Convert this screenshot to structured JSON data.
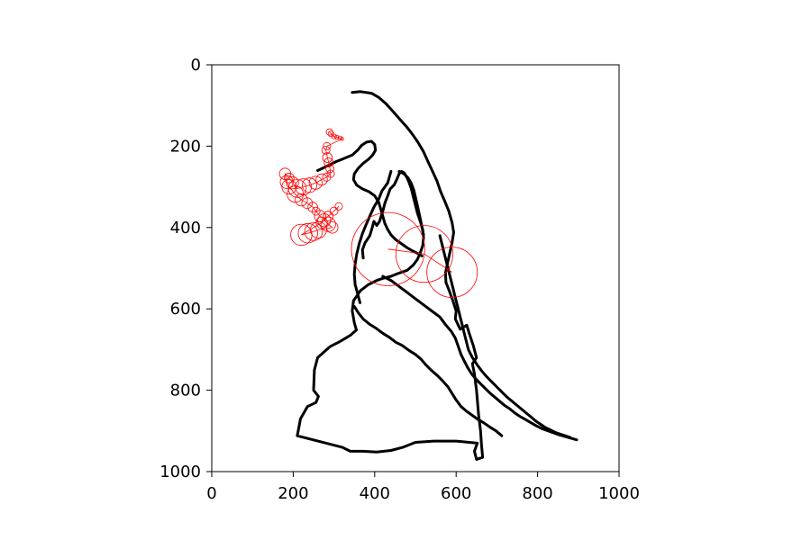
{
  "chart_data": {
    "type": "scatter",
    "title": "",
    "xlabel": "",
    "ylabel": "",
    "xlim": [
      0,
      1000
    ],
    "ylim": [
      1000,
      0
    ],
    "y_inverted": true,
    "aspect": "equal",
    "grid": false,
    "legend": "none",
    "x_ticks": [
      "0",
      "200",
      "400",
      "600",
      "800",
      "1000"
    ],
    "y_ticks": [
      "0",
      "200",
      "400",
      "600",
      "800",
      "1000"
    ],
    "series": [
      {
        "kind": "line",
        "color": "#000000",
        "points": [
          [
            345,
            68
          ],
          [
            365,
            66
          ],
          [
            392,
            70
          ],
          [
            410,
            80
          ],
          [
            428,
            96
          ],
          [
            446,
            116
          ],
          [
            462,
            134
          ],
          [
            478,
            152
          ],
          [
            492,
            170
          ],
          [
            506,
            190
          ],
          [
            519,
            212
          ],
          [
            531,
            238
          ],
          [
            542,
            262
          ],
          [
            553,
            286
          ],
          [
            562,
            312
          ],
          [
            572,
            335
          ],
          [
            582,
            360
          ],
          [
            590,
            388
          ],
          [
            594,
            412
          ],
          [
            590,
            437
          ],
          [
            584,
            464
          ],
          [
            579,
            487
          ],
          [
            574,
            512
          ],
          [
            575,
            535
          ],
          [
            584,
            558
          ],
          [
            592,
            580
          ],
          [
            600,
            605
          ],
          [
            598,
            625
          ],
          [
            610,
            650
          ],
          [
            626,
            640
          ],
          [
            632,
            660
          ],
          [
            642,
            690
          ],
          [
            650,
            720
          ],
          [
            640,
            735
          ],
          [
            645,
            760
          ],
          [
            650,
            800
          ],
          [
            655,
            860
          ],
          [
            660,
            900
          ],
          [
            662,
            930
          ],
          [
            665,
            965
          ],
          [
            650,
            970
          ],
          [
            645,
            950
          ],
          [
            652,
            930
          ],
          [
            600,
            925
          ],
          [
            545,
            925
          ],
          [
            500,
            928
          ],
          [
            470,
            940
          ],
          [
            440,
            948
          ],
          [
            405,
            952
          ],
          [
            370,
            950
          ],
          [
            340,
            950
          ],
          [
            320,
            940
          ],
          [
            210,
            912
          ],
          [
            218,
            870
          ],
          [
            235,
            840
          ],
          [
            256,
            830
          ],
          [
            262,
            815
          ],
          [
            250,
            800
          ],
          [
            252,
            750
          ],
          [
            260,
            720
          ],
          [
            290,
            693
          ],
          [
            315,
            680
          ],
          [
            340,
            665
          ],
          [
            355,
            652
          ],
          [
            350,
            634
          ],
          [
            345,
            605
          ],
          [
            348,
            580
          ],
          [
            365,
            555
          ],
          [
            385,
            540
          ],
          [
            405,
            530
          ],
          [
            420,
            525
          ],
          [
            440,
            520
          ],
          [
            460,
            512
          ],
          [
            480,
            505
          ],
          [
            495,
            492
          ],
          [
            505,
            478
          ],
          [
            512,
            462
          ],
          [
            518,
            445
          ],
          [
            520,
            425
          ],
          [
            518,
            405
          ],
          [
            512,
            385
          ],
          [
            505,
            365
          ],
          [
            500,
            345
          ],
          [
            495,
            325
          ],
          [
            490,
            305
          ],
          [
            484,
            288
          ],
          [
            478,
            275
          ],
          [
            472,
            265
          ],
          [
            466,
            262
          ],
          [
            460,
            268
          ],
          [
            455,
            280
          ],
          [
            448,
            295
          ],
          [
            438,
            305
          ],
          [
            432,
            322
          ],
          [
            425,
            340
          ],
          [
            420,
            360
          ],
          [
            412,
            385
          ],
          [
            405,
            395
          ],
          [
            398,
            385
          ],
          [
            394,
            400
          ],
          [
            388,
            420
          ],
          [
            376,
            438
          ],
          [
            370,
            455
          ],
          [
            372,
            475
          ]
        ]
      },
      {
        "kind": "line",
        "color": "#000000",
        "points": [
          [
            350,
            594
          ],
          [
            360,
            610
          ],
          [
            372,
            625
          ],
          [
            388,
            638
          ],
          [
            404,
            648
          ],
          [
            420,
            660
          ],
          [
            436,
            670
          ],
          [
            452,
            682
          ],
          [
            468,
            690
          ],
          [
            484,
            702
          ],
          [
            500,
            712
          ],
          [
            514,
            724
          ],
          [
            526,
            738
          ],
          [
            540,
            752
          ],
          [
            554,
            764
          ],
          [
            568,
            778
          ],
          [
            580,
            792
          ],
          [
            590,
            808
          ],
          [
            600,
            824
          ],
          [
            612,
            840
          ],
          [
            626,
            852
          ],
          [
            640,
            862
          ],
          [
            654,
            872
          ],
          [
            668,
            880
          ],
          [
            682,
            890
          ],
          [
            698,
            900
          ],
          [
            712,
            912
          ]
        ]
      },
      {
        "kind": "line",
        "color": "#000000",
        "points": [
          [
            420,
            520
          ],
          [
            440,
            530
          ],
          [
            460,
            545
          ],
          [
            480,
            560
          ],
          [
            500,
            575
          ],
          [
            520,
            590
          ],
          [
            540,
            605
          ],
          [
            560,
            620
          ],
          [
            575,
            640
          ],
          [
            588,
            655
          ],
          [
            598,
            672
          ],
          [
            605,
            692
          ],
          [
            612,
            712
          ],
          [
            620,
            728
          ],
          [
            628,
            744
          ],
          [
            638,
            760
          ],
          [
            648,
            772
          ],
          [
            660,
            784
          ],
          [
            672,
            796
          ],
          [
            684,
            808
          ],
          [
            696,
            818
          ],
          [
            708,
            828
          ],
          [
            720,
            838
          ],
          [
            732,
            846
          ],
          [
            744,
            856
          ],
          [
            756,
            864
          ],
          [
            770,
            872
          ],
          [
            784,
            880
          ],
          [
            798,
            888
          ],
          [
            812,
            895
          ],
          [
            826,
            900
          ],
          [
            840,
            905
          ],
          [
            854,
            910
          ],
          [
            868,
            914
          ],
          [
            882,
            918
          ],
          [
            896,
            922
          ]
        ]
      },
      {
        "kind": "line",
        "color": "#000000",
        "points": [
          [
            440,
            262
          ],
          [
            432,
            290
          ],
          [
            418,
            310
          ],
          [
            410,
            330
          ],
          [
            398,
            350
          ],
          [
            388,
            372
          ],
          [
            378,
            395
          ],
          [
            370,
            415
          ],
          [
            362,
            440
          ],
          [
            356,
            465
          ],
          [
            352,
            490
          ],
          [
            350,
            515
          ],
          [
            352,
            540
          ],
          [
            358,
            562
          ],
          [
            364,
            585
          ]
        ]
      },
      {
        "kind": "line",
        "color": "#000000",
        "points": [
          [
            260,
            260
          ],
          [
            285,
            248
          ],
          [
            305,
            238
          ],
          [
            325,
            230
          ],
          [
            345,
            222
          ],
          [
            358,
            210
          ],
          [
            368,
            198
          ],
          [
            380,
            190
          ],
          [
            392,
            188
          ],
          [
            400,
            196
          ],
          [
            402,
            210
          ],
          [
            395,
            222
          ],
          [
            385,
            232
          ],
          [
            372,
            242
          ],
          [
            360,
            254
          ],
          [
            350,
            268
          ],
          [
            348,
            282
          ],
          [
            356,
            296
          ],
          [
            370,
            305
          ],
          [
            386,
            312
          ],
          [
            400,
            322
          ],
          [
            410,
            338
          ],
          [
            415,
            355
          ],
          [
            420,
            372
          ],
          [
            425,
            390
          ],
          [
            432,
            405
          ],
          [
            440,
            418
          ],
          [
            452,
            430
          ],
          [
            466,
            440
          ],
          [
            480,
            450
          ],
          [
            494,
            458
          ],
          [
            506,
            464
          ],
          [
            516,
            470
          ]
        ]
      },
      {
        "kind": "line",
        "color": "#000000",
        "points": [
          [
            460,
            262
          ],
          [
            472,
            268
          ],
          [
            482,
            278
          ],
          [
            490,
            292
          ],
          [
            496,
            308
          ],
          [
            500,
            325
          ],
          [
            504,
            342
          ],
          [
            508,
            360
          ],
          [
            512,
            378
          ],
          [
            516,
            398
          ],
          [
            520,
            418
          ]
        ]
      },
      {
        "kind": "line",
        "color": "#000000",
        "points": [
          [
            560,
            420
          ],
          [
            565,
            440
          ],
          [
            570,
            460
          ],
          [
            575,
            480
          ],
          [
            580,
            500
          ],
          [
            585,
            520
          ],
          [
            590,
            540
          ],
          [
            595,
            560
          ],
          [
            600,
            580
          ],
          [
            605,
            600
          ],
          [
            610,
            620
          ],
          [
            615,
            640
          ],
          [
            620,
            660
          ],
          [
            625,
            680
          ],
          [
            630,
            700
          ],
          [
            640,
            720
          ],
          [
            652,
            738
          ],
          [
            664,
            754
          ],
          [
            676,
            768
          ],
          [
            688,
            780
          ],
          [
            700,
            792
          ],
          [
            712,
            804
          ],
          [
            724,
            816
          ],
          [
            736,
            826
          ],
          [
            748,
            836
          ],
          [
            760,
            846
          ],
          [
            772,
            856
          ],
          [
            784,
            866
          ],
          [
            796,
            876
          ],
          [
            808,
            884
          ],
          [
            820,
            892
          ],
          [
            832,
            898
          ],
          [
            844,
            904
          ],
          [
            856,
            908
          ],
          [
            868,
            912
          ],
          [
            880,
            916
          ]
        ]
      },
      {
        "kind": "circles",
        "color": "#ff0000",
        "points": [
          [
            289,
            165
          ],
          [
            293,
            170
          ],
          [
            300,
            176
          ],
          [
            307,
            178
          ],
          [
            315,
            180
          ],
          [
            320,
            182
          ],
          [
            283,
            200
          ],
          [
            280,
            210
          ],
          [
            284,
            228
          ],
          [
            287,
            240
          ],
          [
            290,
            255
          ],
          [
            292,
            268
          ],
          [
            282,
            276
          ],
          [
            270,
            282
          ],
          [
            255,
            290
          ],
          [
            240,
            296
          ],
          [
            225,
            300
          ],
          [
            210,
            304
          ],
          [
            198,
            290
          ],
          [
            190,
            278
          ],
          [
            180,
            268
          ],
          [
            184,
            288
          ],
          [
            190,
            300
          ],
          [
            205,
            318
          ],
          [
            220,
            332
          ],
          [
            234,
            340
          ],
          [
            248,
            350
          ],
          [
            256,
            360
          ],
          [
            266,
            372
          ],
          [
            276,
            382
          ],
          [
            286,
            392
          ],
          [
            296,
            400
          ],
          [
            262,
            406
          ],
          [
            250,
            410
          ],
          [
            236,
            414
          ],
          [
            220,
            418
          ],
          [
            270,
            388
          ],
          [
            286,
            372
          ],
          [
            300,
            360
          ],
          [
            312,
            348
          ]
        ],
        "radii": [
          8,
          7,
          6,
          5,
          5,
          4,
          9,
          10,
          12,
          11,
          10,
          9,
          10,
          14,
          16,
          18,
          20,
          22,
          15,
          12,
          14,
          16,
          18,
          20,
          15,
          13,
          12,
          10,
          14,
          16,
          18,
          14,
          20,
          22,
          24,
          26,
          14,
          12,
          10,
          9
        ]
      },
      {
        "kind": "circles",
        "color": "#ff0000",
        "points": [
          [
            433,
            453
          ],
          [
            522,
            465
          ],
          [
            590,
            510
          ]
        ],
        "radii": [
          90,
          70,
          62
        ]
      }
    ]
  }
}
